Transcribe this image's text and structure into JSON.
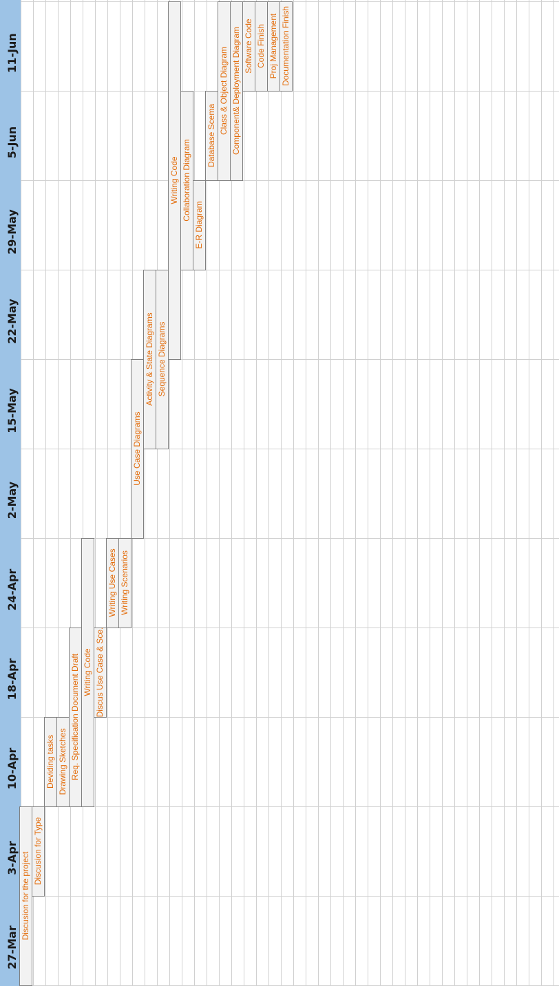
{
  "chart_data": {
    "type": "gantt",
    "orientation": "rotated-90-ccw",
    "dates": [
      "27-Mar",
      "3-Apr",
      "10-Apr",
      "18-Apr",
      "24-Apr",
      "2-May",
      "15-May",
      "22-May",
      "29-May",
      "5-Jun",
      "11-Jun"
    ],
    "tasks": [
      {
        "name": "Discusion for the project",
        "start": 0,
        "end": 2
      },
      {
        "name": "Discusion for Type",
        "start": 1,
        "end": 2
      },
      {
        "name": "Deviding tasks",
        "start": 2,
        "end": 3
      },
      {
        "name": "Drawing Sketches",
        "start": 2,
        "end": 3
      },
      {
        "name": "Req. Specification Document Draft",
        "start": 2,
        "end": 4
      },
      {
        "name": "Writing Code",
        "start": 2,
        "end": 5
      },
      {
        "name": "Discus Use Case & Sce.",
        "start": 3,
        "end": 4
      },
      {
        "name": "Writing Use Cases",
        "start": 4,
        "end": 5
      },
      {
        "name": "Writing Scenarios",
        "start": 4,
        "end": 5
      },
      {
        "name": "Use Case Diagrams",
        "start": 5,
        "end": 7
      },
      {
        "name": "Activity & State Diagrams",
        "start": 6,
        "end": 8
      },
      {
        "name": "Sequence Diagrams",
        "start": 6,
        "end": 8
      },
      {
        "name": "Writing Code",
        "start": 7,
        "end": 11
      },
      {
        "name": "Collaboration Diagram",
        "start": 8,
        "end": 10
      },
      {
        "name": "E-R Diagram",
        "start": 8,
        "end": 9
      },
      {
        "name": "Database Scema",
        "start": 9,
        "end": 10
      },
      {
        "name": "Class & Object Diagram",
        "start": 9,
        "end": 11
      },
      {
        "name": "Component& Deployment Diagram",
        "start": 9,
        "end": 11
      },
      {
        "name": "Software Code",
        "start": 10,
        "end": 11
      },
      {
        "name": "Code Finish",
        "start": 10,
        "end": 11
      },
      {
        "name": "Proj Management",
        "start": 10,
        "end": 11
      },
      {
        "name": "Documentation Finish",
        "start": 10,
        "end": 11
      }
    ],
    "grid": true,
    "colors": {
      "date_band": "#9dc3e6",
      "bar_fill": "#f2f2f2",
      "bar_stroke": "#808080",
      "grid": "#d0d0d0",
      "label": "#e36c0a"
    }
  }
}
